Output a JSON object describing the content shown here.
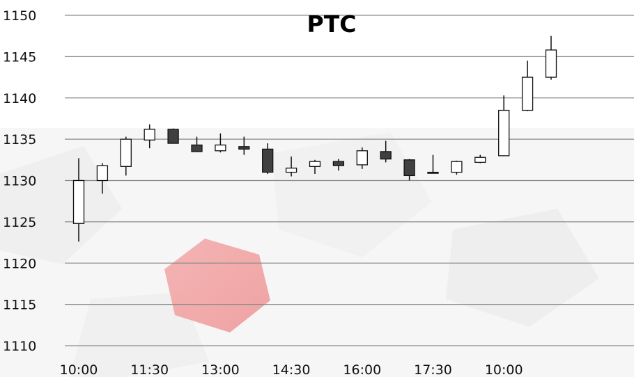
{
  "chart_data": {
    "type": "candlestick",
    "title": "PTC",
    "xlabel": "",
    "ylabel": "",
    "ylim": [
      1110,
      1150
    ],
    "yticks": [
      1110,
      1115,
      1120,
      1125,
      1130,
      1135,
      1140,
      1145,
      1150
    ],
    "grid": true,
    "xtick_labels": [
      "10:00",
      "11:30",
      "13:00",
      "14:30",
      "16:00",
      "17:30",
      "10:00"
    ],
    "candles": [
      {
        "open": 1124.8,
        "high": 1132.7,
        "low": 1122.6,
        "close": 1130.0
      },
      {
        "open": 1130.0,
        "high": 1132.1,
        "low": 1128.4,
        "close": 1131.8
      },
      {
        "open": 1131.7,
        "high": 1135.3,
        "low": 1130.6,
        "close": 1135.0
      },
      {
        "open": 1134.9,
        "high": 1136.8,
        "low": 1133.9,
        "close": 1136.2
      },
      {
        "open": 1136.2,
        "high": 1136.3,
        "low": 1134.5,
        "close": 1134.5
      },
      {
        "open": 1134.3,
        "high": 1135.3,
        "low": 1133.5,
        "close": 1133.5
      },
      {
        "open": 1133.6,
        "high": 1135.7,
        "low": 1133.4,
        "close": 1134.3
      },
      {
        "open": 1134.1,
        "high": 1135.3,
        "low": 1133.1,
        "close": 1133.8
      },
      {
        "open": 1133.8,
        "high": 1134.5,
        "low": 1130.8,
        "close": 1131.0
      },
      {
        "open": 1131.0,
        "high": 1132.9,
        "low": 1130.5,
        "close": 1131.5
      },
      {
        "open": 1131.7,
        "high": 1132.5,
        "low": 1130.8,
        "close": 1132.3
      },
      {
        "open": 1132.3,
        "high": 1132.6,
        "low": 1131.2,
        "close": 1131.8
      },
      {
        "open": 1131.9,
        "high": 1134.0,
        "low": 1131.4,
        "close": 1133.6
      },
      {
        "open": 1133.5,
        "high": 1134.8,
        "low": 1132.2,
        "close": 1132.6
      },
      {
        "open": 1132.5,
        "high": 1132.6,
        "low": 1130.0,
        "close": 1130.6
      },
      {
        "open": 1131.0,
        "high": 1133.1,
        "low": 1130.9,
        "close": 1130.9
      },
      {
        "open": 1131.0,
        "high": 1132.4,
        "low": 1130.7,
        "close": 1132.3
      },
      {
        "open": 1132.2,
        "high": 1133.1,
        "low": 1132.1,
        "close": 1132.8
      },
      {
        "open": 1133.0,
        "high": 1140.3,
        "low": 1133.0,
        "close": 1138.5
      },
      {
        "open": 1138.5,
        "high": 1144.5,
        "low": 1138.4,
        "close": 1142.5
      },
      {
        "open": 1142.5,
        "high": 1147.5,
        "low": 1142.2,
        "close": 1145.8
      }
    ],
    "colors": {
      "up_fill": "#ffffff",
      "down_fill": "#404040",
      "outline": "#111111",
      "grid": "#8c8c8c"
    }
  }
}
